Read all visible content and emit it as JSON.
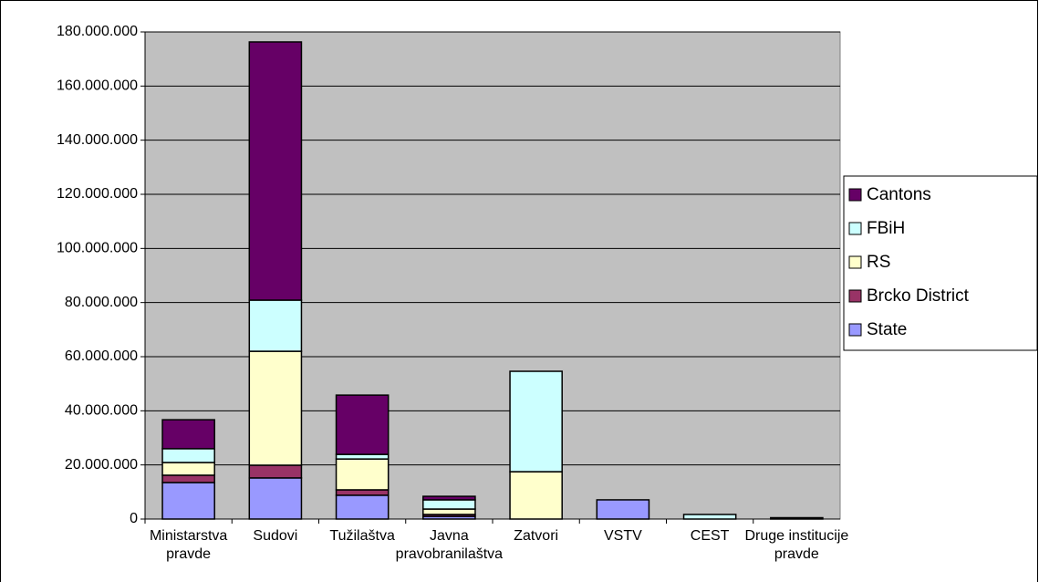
{
  "chart_data": {
    "type": "stacked_bar",
    "categories": [
      "Ministarstva pravde",
      "Sudovi",
      "Tužilaštva",
      "Javna pravobranilaštva",
      "Zatvori",
      "VSTV",
      "CEST",
      "Druge institucije pravde"
    ],
    "series": [
      {
        "name": "State",
        "color": "#9999ff",
        "values": [
          13500000,
          15200000,
          8800000,
          1000000,
          0,
          7100000,
          0,
          500000
        ]
      },
      {
        "name": "Brcko District",
        "color": "#993366",
        "values": [
          2700000,
          4700000,
          2000000,
          700000,
          0,
          0,
          0,
          0
        ]
      },
      {
        "name": "RS",
        "color": "#ffffcc",
        "values": [
          4700000,
          42100000,
          11400000,
          2000000,
          17500000,
          0,
          0,
          0
        ]
      },
      {
        "name": "FBiH",
        "color": "#ccffff",
        "values": [
          5100000,
          18900000,
          1700000,
          3400000,
          37100000,
          0,
          1700000,
          0
        ]
      },
      {
        "name": "Cantons",
        "color": "#660066",
        "values": [
          10700000,
          95400000,
          21900000,
          1300000,
          0,
          0,
          0,
          0
        ]
      }
    ],
    "ylim": [
      0,
      180000000
    ],
    "yticks": [
      {
        "value": 0,
        "label": "0"
      },
      {
        "value": 20000000,
        "label": "20.000.000"
      },
      {
        "value": 40000000,
        "label": "40.000.000"
      },
      {
        "value": 60000000,
        "label": "60.000.000"
      },
      {
        "value": 80000000,
        "label": "80.000.000"
      },
      {
        "value": 100000000,
        "label": "100.000.000"
      },
      {
        "value": 120000000,
        "label": "120.000.000"
      },
      {
        "value": 140000000,
        "label": "140.000.000"
      },
      {
        "value": 160000000,
        "label": "160.000.000"
      },
      {
        "value": 180000000,
        "label": "180.000.000"
      }
    ],
    "grid": true,
    "legend": "right"
  }
}
